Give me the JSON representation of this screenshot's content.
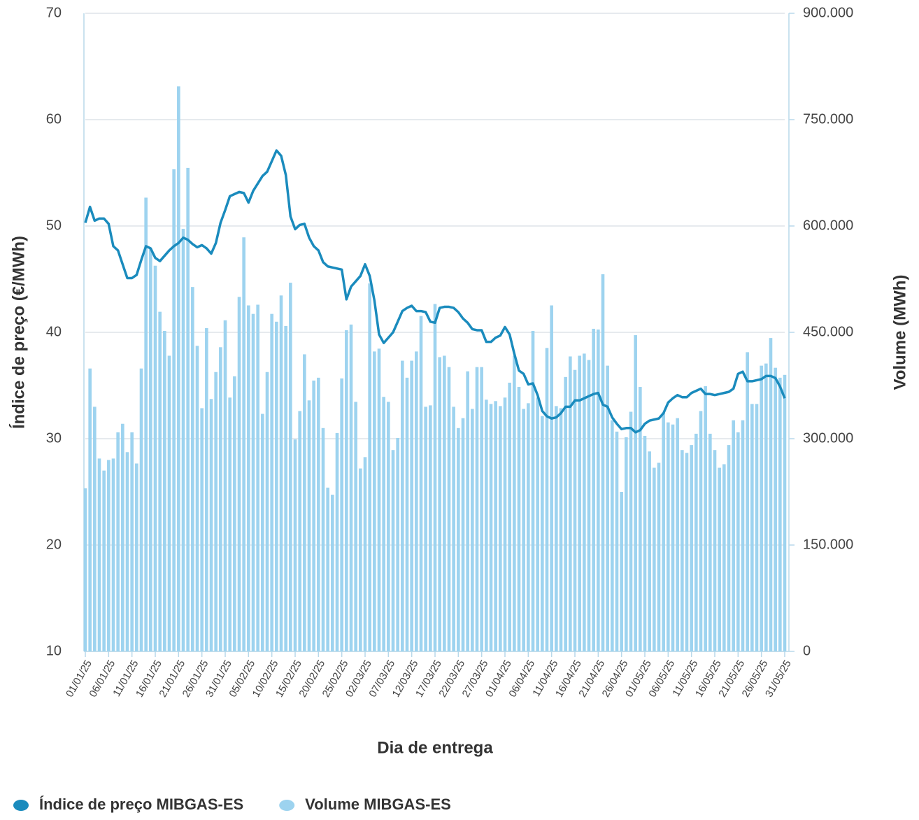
{
  "chart_data": {
    "type": "bar-line",
    "x_label": "Dia de entrega",
    "y_label": "Índice de preço (€/MWh)",
    "y2_label": "Volume (MWh)",
    "categories": [
      "01/01/25",
      null,
      null,
      null,
      null,
      "06/01/25",
      null,
      null,
      null,
      null,
      "11/01/25",
      null,
      null,
      null,
      null,
      "16/01/25",
      null,
      null,
      null,
      null,
      "21/01/25",
      null,
      null,
      null,
      null,
      "26/01/25",
      null,
      null,
      null,
      null,
      "31/01/25",
      null,
      null,
      null,
      null,
      "05/02/25",
      null,
      null,
      null,
      null,
      "10/02/25",
      null,
      null,
      null,
      null,
      "15/02/25",
      null,
      null,
      null,
      null,
      "20/02/25",
      null,
      null,
      null,
      null,
      "25/02/25",
      null,
      null,
      null,
      null,
      "02/03/25",
      null,
      null,
      null,
      null,
      "07/03/25",
      null,
      null,
      null,
      null,
      "12/03/25",
      null,
      null,
      null,
      null,
      "17/03/25",
      null,
      null,
      null,
      null,
      "22/03/25",
      null,
      null,
      null,
      null,
      "27/03/25",
      null,
      null,
      null,
      null,
      "01/04/25",
      null,
      null,
      null,
      null,
      "06/04/25",
      null,
      null,
      null,
      null,
      "11/04/25",
      null,
      null,
      null,
      null,
      "16/04/25",
      null,
      null,
      null,
      null,
      "21/04/25",
      null,
      null,
      null,
      null,
      "26/04/25",
      null,
      null,
      null,
      null,
      "01/05/25",
      null,
      null,
      null,
      null,
      "06/05/25",
      null,
      null,
      null,
      null,
      "11/05/25",
      null,
      null,
      null,
      null,
      "16/05/25",
      null,
      null,
      null,
      null,
      "21/05/25",
      null,
      null,
      null,
      null,
      "26/05/25",
      null,
      null,
      null,
      null,
      "31/05/25"
    ],
    "series": [
      {
        "name": "Índice de preço MIBGAS-ES",
        "color": "#1a8bbd",
        "type": "line",
        "axis": "y",
        "values": [
          50.3,
          51.8,
          50.5,
          50.7,
          50.7,
          50.2,
          48.1,
          47.7,
          46.4,
          45.1,
          45.1,
          45.4,
          46.8,
          48.1,
          47.9,
          47.0,
          46.7,
          47.2,
          47.7,
          48.1,
          48.4,
          48.9,
          48.7,
          48.3,
          48.0,
          48.2,
          47.9,
          47.4,
          48.4,
          50.3,
          51.5,
          52.8,
          53.0,
          53.2,
          53.1,
          52.2,
          53.3,
          54.0,
          54.7,
          55.1,
          56.1,
          57.1,
          56.6,
          54.8,
          50.9,
          49.7,
          50.1,
          50.2,
          48.9,
          48.1,
          47.7,
          46.6,
          46.2,
          46.1,
          46.0,
          45.9,
          43.1,
          44.3,
          44.8,
          45.3,
          46.4,
          45.3,
          43.0,
          39.8,
          39.0,
          39.5,
          40.0,
          41.0,
          42.0,
          42.3,
          42.5,
          42.0,
          42.0,
          41.9,
          41.0,
          40.9,
          42.3,
          42.4,
          42.4,
          42.3,
          41.9,
          41.3,
          40.9,
          40.3,
          40.2,
          40.2,
          39.1,
          39.1,
          39.5,
          39.7,
          40.5,
          39.8,
          38.0,
          36.4,
          36.1,
          35.1,
          35.2,
          34.1,
          32.6,
          32.1,
          31.9,
          32.0,
          32.4,
          33.0,
          33.0,
          33.6,
          33.6,
          33.8,
          34.0,
          34.2,
          34.3,
          33.2,
          33.0,
          32.0,
          31.4,
          30.9,
          31.0,
          31.0,
          30.6,
          30.8,
          31.4,
          31.7,
          31.8,
          31.9,
          32.4,
          33.4,
          33.8,
          34.1,
          33.9,
          33.9,
          34.3,
          34.5,
          34.7,
          34.2,
          34.2,
          34.1,
          34.2,
          34.3,
          34.4,
          34.7,
          36.1,
          36.3,
          35.4,
          35.4,
          35.5,
          35.6,
          35.9,
          35.9,
          35.7,
          34.9,
          33.8
        ]
      },
      {
        "name": "Volume MIBGAS-ES",
        "color": "#9dd3ef",
        "type": "bar",
        "axis": "y2",
        "values": [
          230000,
          399000,
          345000,
          272000,
          255000,
          270000,
          272000,
          309000,
          321000,
          281000,
          309000,
          265000,
          399000,
          640000,
          568000,
          544000,
          479000,
          452000,
          417000,
          680000,
          797000,
          596000,
          682000,
          514000,
          431000,
          343000,
          456000,
          356000,
          394000,
          429000,
          467000,
          358000,
          388000,
          500000,
          584000,
          488000,
          476000,
          489000,
          335000,
          394000,
          476000,
          465000,
          502000,
          459000,
          520000,
          299000,
          339000,
          419000,
          354000,
          382000,
          386000,
          315000,
          231000,
          221000,
          308000,
          385000,
          453000,
          461000,
          352000,
          258000,
          274000,
          519000,
          423000,
          427000,
          359000,
          352000,
          284000,
          301000,
          410000,
          386000,
          410000,
          423000,
          473000,
          345000,
          347000,
          490000,
          415000,
          417000,
          401000,
          345000,
          315000,
          329000,
          395000,
          342000,
          401000,
          401000,
          355000,
          349000,
          353000,
          346000,
          358000,
          379000,
          417000,
          373000,
          342000,
          350000,
          452000,
          358000,
          332000,
          428000,
          488000,
          346000,
          343000,
          387000,
          416000,
          397000,
          417000,
          420000,
          411000,
          455000,
          454000,
          532000,
          403000,
          326000,
          310000,
          225000,
          302000,
          338000,
          446000,
          373000,
          304000,
          282000,
          259000,
          266000,
          337000,
          323000,
          320000,
          329000,
          284000,
          280000,
          291000,
          307000,
          339000,
          374000,
          307000,
          284000,
          259000,
          264000,
          291000,
          326000,
          309000,
          326000,
          422000,
          349000,
          349000,
          403000,
          406000,
          442000,
          400000,
          386000,
          390000
        ]
      }
    ],
    "ylim": [
      10,
      70
    ],
    "yticks": [
      10,
      20,
      30,
      40,
      50,
      60,
      70
    ],
    "y2lim": [
      0,
      900000
    ],
    "y2ticks": [
      0,
      {
        "value": 150000,
        "label": "150.000"
      },
      {
        "value": 300000,
        "label": "300.000"
      },
      {
        "value": 450000,
        "label": "450.000"
      },
      {
        "value": 600000,
        "label": "600.000"
      },
      {
        "value": 750000,
        "label": "750.000"
      },
      {
        "value": 900000,
        "label": "900.000"
      }
    ],
    "grid": true,
    "legend": "bottom-left"
  }
}
